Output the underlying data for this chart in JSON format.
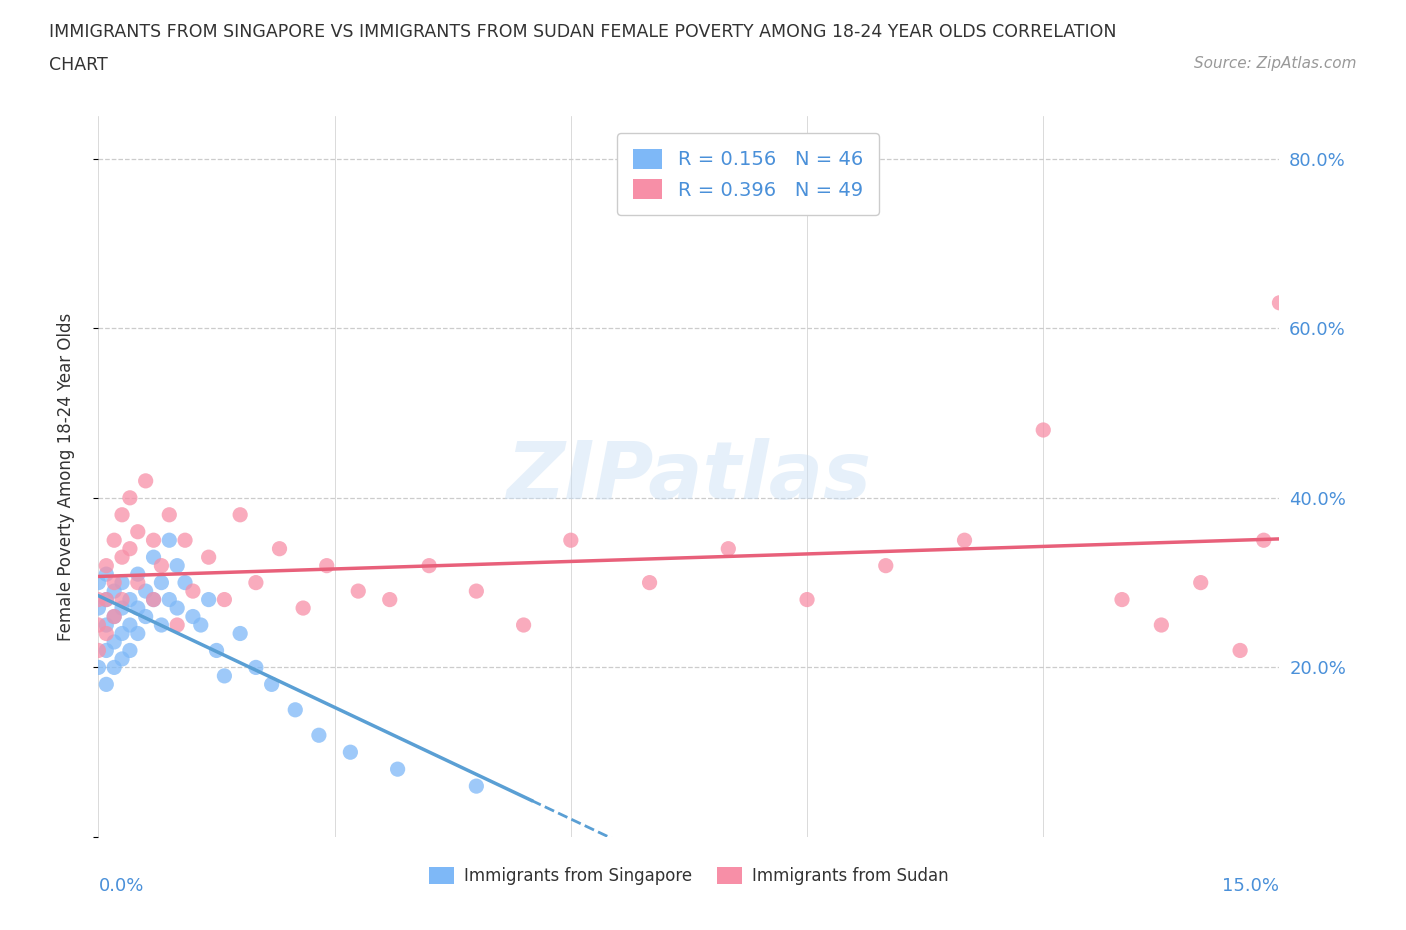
{
  "title_line1": "IMMIGRANTS FROM SINGAPORE VS IMMIGRANTS FROM SUDAN FEMALE POVERTY AMONG 18-24 YEAR OLDS CORRELATION",
  "title_line2": "CHART",
  "source": "Source: ZipAtlas.com",
  "ylabel": "Female Poverty Among 18-24 Year Olds",
  "xlim": [
    0.0,
    0.15
  ],
  "ylim": [
    0.0,
    0.85
  ],
  "xtick_positions": [
    0.0,
    0.03,
    0.06,
    0.09,
    0.12,
    0.15
  ],
  "yticks": [
    0.0,
    0.2,
    0.4,
    0.6,
    0.8
  ],
  "yticklabels": [
    "",
    "20.0%",
    "40.0%",
    "60.0%",
    "80.0%"
  ],
  "singapore_color": "#7eb8f7",
  "sudan_color": "#f78fa7",
  "trend_singapore_color": "#5a9fd4",
  "trend_sudan_color": "#e8607a",
  "watermark": "ZIPatlas",
  "legend_R_singapore": "R = 0.156",
  "legend_N_singapore": "N = 46",
  "legend_R_sudan": "R = 0.396",
  "legend_N_sudan": "N = 49",
  "legend_label_singapore": "Immigrants from Singapore",
  "legend_label_sudan": "Immigrants from Sudan",
  "sg_x": [
    0.0,
    0.0,
    0.0,
    0.001,
    0.001,
    0.001,
    0.001,
    0.001,
    0.002,
    0.002,
    0.002,
    0.002,
    0.003,
    0.003,
    0.003,
    0.003,
    0.004,
    0.004,
    0.004,
    0.005,
    0.005,
    0.005,
    0.006,
    0.006,
    0.007,
    0.007,
    0.008,
    0.008,
    0.009,
    0.009,
    0.01,
    0.01,
    0.011,
    0.012,
    0.013,
    0.014,
    0.015,
    0.016,
    0.018,
    0.02,
    0.022,
    0.025,
    0.028,
    0.032,
    0.038,
    0.048
  ],
  "sg_y": [
    0.27,
    0.3,
    0.2,
    0.28,
    0.31,
    0.25,
    0.22,
    0.18,
    0.29,
    0.26,
    0.23,
    0.2,
    0.3,
    0.27,
    0.24,
    0.21,
    0.28,
    0.25,
    0.22,
    0.31,
    0.27,
    0.24,
    0.29,
    0.26,
    0.33,
    0.28,
    0.3,
    0.25,
    0.35,
    0.28,
    0.32,
    0.27,
    0.3,
    0.26,
    0.25,
    0.28,
    0.22,
    0.19,
    0.24,
    0.2,
    0.18,
    0.15,
    0.12,
    0.1,
    0.08,
    0.06
  ],
  "su_x": [
    0.0,
    0.0,
    0.0,
    0.001,
    0.001,
    0.001,
    0.002,
    0.002,
    0.002,
    0.003,
    0.003,
    0.003,
    0.004,
    0.004,
    0.005,
    0.005,
    0.006,
    0.007,
    0.007,
    0.008,
    0.009,
    0.01,
    0.011,
    0.012,
    0.014,
    0.016,
    0.018,
    0.02,
    0.023,
    0.026,
    0.029,
    0.033,
    0.037,
    0.042,
    0.048,
    0.054,
    0.06,
    0.07,
    0.08,
    0.09,
    0.1,
    0.11,
    0.12,
    0.13,
    0.135,
    0.14,
    0.145,
    0.148,
    0.15
  ],
  "su_y": [
    0.28,
    0.25,
    0.22,
    0.32,
    0.28,
    0.24,
    0.35,
    0.3,
    0.26,
    0.38,
    0.33,
    0.28,
    0.4,
    0.34,
    0.36,
    0.3,
    0.42,
    0.35,
    0.28,
    0.32,
    0.38,
    0.25,
    0.35,
    0.29,
    0.33,
    0.28,
    0.38,
    0.3,
    0.34,
    0.27,
    0.32,
    0.29,
    0.28,
    0.32,
    0.29,
    0.25,
    0.35,
    0.3,
    0.34,
    0.28,
    0.32,
    0.35,
    0.48,
    0.28,
    0.25,
    0.3,
    0.22,
    0.35,
    0.63
  ],
  "sg_trend_x0": 0.0,
  "sg_trend_x1": 0.055,
  "su_trend_x0": 0.0,
  "su_trend_x1": 0.15,
  "grid_yticks": [
    0.2,
    0.4,
    0.6,
    0.8
  ],
  "grid_color": "#cccccc",
  "axis_label_color": "#4a90d9",
  "text_color": "#333333",
  "source_color": "#999999"
}
